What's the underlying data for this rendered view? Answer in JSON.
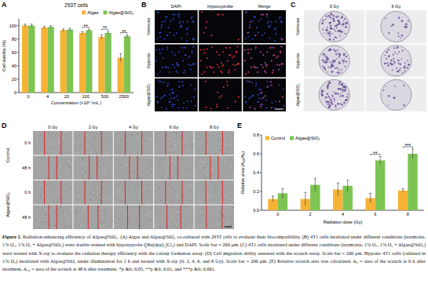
{
  "panel_labels": [
    "A",
    "B",
    "C",
    "D",
    "E"
  ],
  "chart_data": [
    {
      "type": "bar",
      "title": "293T cells",
      "x_label": "Concentration (×10⁴ /mL )",
      "y_label": "Cell viability (%)",
      "categories": [
        "0",
        "4",
        "20",
        "100",
        "500",
        "2500"
      ],
      "series": [
        {
          "name": "Algae",
          "color": "#f5b335",
          "values": [
            100,
            97,
            93,
            89,
            83,
            52
          ],
          "errors": [
            2,
            2,
            2,
            2,
            3,
            6
          ]
        },
        {
          "name": "Algae@SiO₂",
          "color": "#7dc453",
          "values": [
            100,
            98,
            94,
            93,
            89,
            84
          ],
          "errors": [
            2,
            2,
            2,
            1,
            2,
            2
          ]
        }
      ],
      "ylim": [
        0,
        110
      ],
      "yticks": [
        0,
        20,
        40,
        60,
        80,
        100
      ],
      "legend": "upper right",
      "annotations": [
        {
          "text": "**",
          "category": "100"
        },
        {
          "text": "**",
          "category": "500"
        },
        {
          "text": "**",
          "category": "2500"
        }
      ]
    },
    {
      "type": "bar",
      "x_label": "Radiation dose (Gy)",
      "y_label": "Relative area (A₄₈/A₀)",
      "categories": [
        "0",
        "2",
        "4",
        "6",
        "8"
      ],
      "series": [
        {
          "name": "Control",
          "color": "#f5b335",
          "values": [
            0.12,
            0.12,
            0.22,
            0.13,
            0.21
          ],
          "errors": [
            0.03,
            0.07,
            0.07,
            0.05,
            0.02
          ]
        },
        {
          "name": "Algae@SiO₂",
          "color": "#7dc453",
          "values": [
            0.18,
            0.27,
            0.26,
            0.53,
            0.6
          ],
          "errors": [
            0.05,
            0.07,
            0.06,
            0.04,
            0.05
          ]
        }
      ],
      "ylim": [
        0,
        0.8
      ],
      "yticks": [
        {
          "value": 0,
          "label": "0.0"
        },
        0.2,
        0.4,
        0.6,
        0.8
      ],
      "legend": "upper left",
      "annotations": [
        {
          "text": "**",
          "category": "6"
        },
        {
          "text": "***",
          "category": "8"
        }
      ]
    }
  ],
  "panel_B": {
    "columns": [
      "DAPI",
      "Hypoxyprobe",
      "Merge"
    ],
    "rows": [
      "Normoxia",
      "Hypoxia",
      "Algae@SiO₂"
    ]
  },
  "panel_C": {
    "columns": [
      "0 Gy",
      "6 Gy"
    ],
    "rows": [
      "Normoxia",
      "Hypoxia",
      "Algae@SiO₂"
    ]
  },
  "panel_D": {
    "columns": [
      "0 Gy",
      "2 Gy",
      "4 Gy",
      "6 Gy",
      "8 Gy"
    ],
    "groups": [
      {
        "name": "Control",
        "rows": [
          "0 h",
          "48 h"
        ]
      },
      {
        "name": "Algae@SiO₂",
        "rows": [
          "0 h",
          "48 h"
        ]
      }
    ]
  },
  "caption": {
    "label": "Figure 2.",
    "text": "Radiation-enhancing efficiency of Algae@SiO₂. (A) Algae and Algae@SiO₂ co-cultured with 293T cells to evaluate their biocompatibility. (B) 4T1 cells incubated under different conditions (normoxia, 1% O₂, 1% O₂ + Algae@SiO₂) were double-stained with hypoxyprobe ([Ru(dpp)₃]Cl₂) and DAPI. Scale bar = 200 μm. (C) 4T1 cells incubated under different conditions (normoxia, 1% O₂, 1% O₂ + Algae@SiO₂) were treated with X-ray to evaluate the radiation therapy efficiency with the colony formation assay. (D) Cell migration ability assessed with the scratch assay. Scale bar = 200 μm. Hypoxic 4T1 cells (cultured in 1% O₂) incubated with Algae@SiO₂ under illumination for 1 h and treated with X-ray (0, 2, 4, 6, and 8 Gy). Scale bar = 200 μm. (E) Relative scratch area was calculated. A₀ = area of the scratch at 0 h after treatment, A₄₈ = area of the scratch at 48 h after treatment. *p &lt; 0.05, **p &lt; 0.01, and ***p &lt; 0.001."
  }
}
